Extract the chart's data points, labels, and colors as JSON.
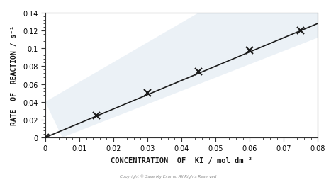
{
  "x_data": [
    0.0,
    0.015,
    0.03,
    0.045,
    0.06,
    0.075
  ],
  "y_data": [
    0.0,
    0.025,
    0.05,
    0.074,
    0.098,
    0.12
  ],
  "line_x": [
    0.0,
    0.08
  ],
  "line_y": [
    0.0,
    0.128
  ],
  "xlim": [
    0.0,
    0.08
  ],
  "ylim": [
    0.0,
    0.14
  ],
  "xticks": [
    0.0,
    0.01,
    0.02,
    0.03,
    0.04,
    0.05,
    0.06,
    0.07,
    0.08
  ],
  "yticks": [
    0.0,
    0.02,
    0.04,
    0.06,
    0.08,
    0.1,
    0.12,
    0.14
  ],
  "xlabel": "CONCENTRATION  OF  KI / mol dm⁻³",
  "ylabel": "RATE  OF  REACTION / s⁻¹",
  "marker": "x",
  "marker_color": "#1a1a1a",
  "line_color": "#1a1a1a",
  "bg_color": "#ffffff",
  "watermark_color": "#c8d8e8",
  "copyright_text": "Copyright © Save My Exams. All Rights Reserved",
  "marker_size": 7,
  "marker_linewidth": 1.5,
  "line_width": 1.2
}
